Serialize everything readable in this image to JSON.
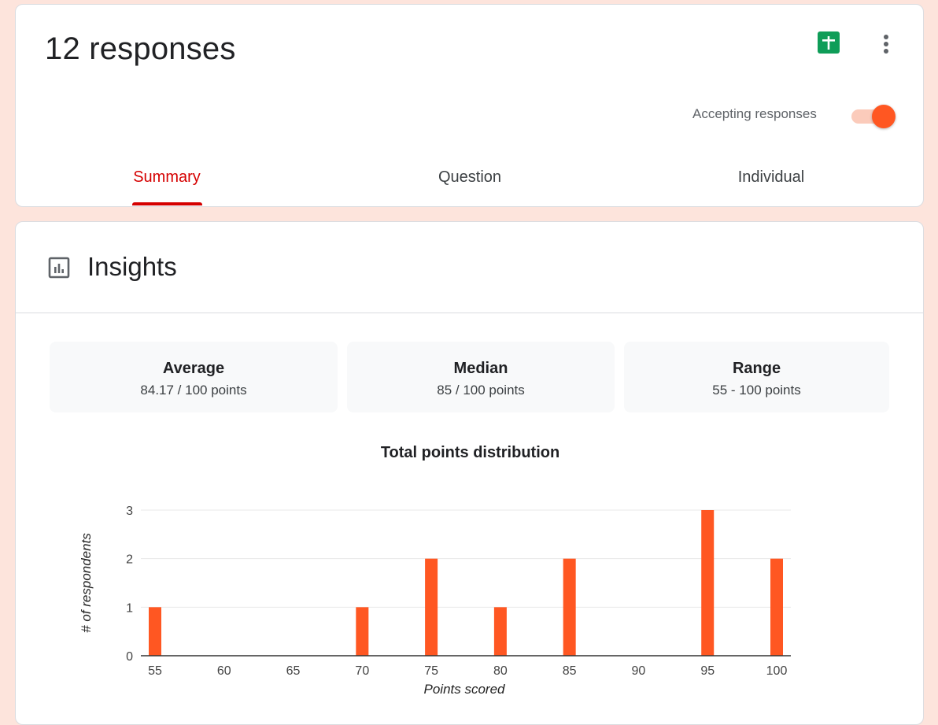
{
  "header": {
    "title": "12 responses",
    "accepting_label": "Accepting responses",
    "accepting": true,
    "tabs": [
      {
        "label": "Summary",
        "active": true
      },
      {
        "label": "Question",
        "active": false
      },
      {
        "label": "Individual",
        "active": false
      }
    ],
    "icons": {
      "sheets": "google-sheets-icon",
      "more": "more-vert-icon"
    }
  },
  "insights": {
    "title": "Insights",
    "icon": "bar-chart-icon",
    "stats": [
      {
        "label": "Average",
        "value": "84.17 / 100 points"
      },
      {
        "label": "Median",
        "value": "85 / 100 points"
      },
      {
        "label": "Range",
        "value": "55 - 100 points"
      }
    ]
  },
  "colors": {
    "accent": "#ff5722",
    "tab_active": "#d50000",
    "background": "#fde4dc"
  },
  "chart_data": {
    "type": "bar",
    "title": "Total points distribution",
    "xlabel": "Points scored",
    "ylabel": "# of respondents",
    "categories": [
      "55",
      "60",
      "65",
      "70",
      "75",
      "80",
      "85",
      "90",
      "95",
      "100"
    ],
    "values": [
      1,
      0,
      0,
      1,
      2,
      1,
      2,
      0,
      3,
      2
    ],
    "ylim": [
      0,
      3
    ],
    "yticks": [
      "0",
      "1",
      "2",
      "3"
    ],
    "grid": true,
    "color": "#ff5722"
  }
}
